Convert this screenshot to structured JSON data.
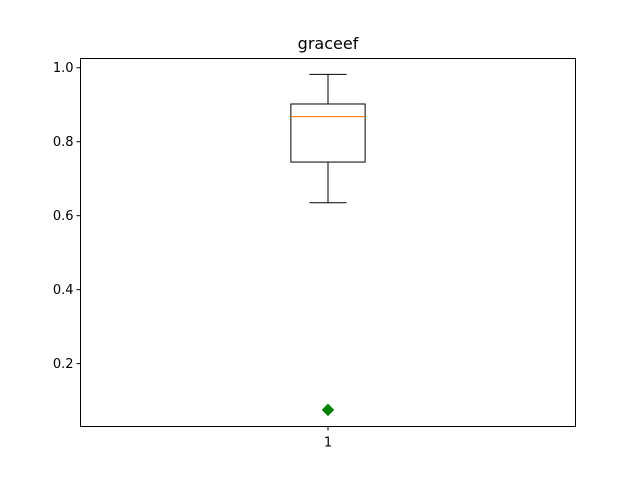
{
  "chart_data": {
    "type": "box",
    "title": "graceef",
    "xlabel": "",
    "ylabel": "",
    "categories": [
      "1"
    ],
    "boxes": [
      {
        "category": "1",
        "whisker_low": 0.635,
        "q1": 0.745,
        "median": 0.868,
        "q3": 0.902,
        "whisker_high": 0.982,
        "fliers": [
          0.075
        ]
      }
    ],
    "ylim": [
      0.03,
      1.025
    ],
    "yticks": [
      0.2,
      0.4,
      0.6,
      0.8,
      1.0
    ],
    "ytick_labels": [
      "0.2",
      "0.4",
      "0.6",
      "0.8",
      "1.0"
    ],
    "xlim": [
      0.5,
      1.5
    ],
    "grid": false,
    "colors": {
      "box": "#000000",
      "median": "#ff7f0e",
      "flier": "#008000",
      "axes": "#000000",
      "background": "#ffffff"
    }
  }
}
